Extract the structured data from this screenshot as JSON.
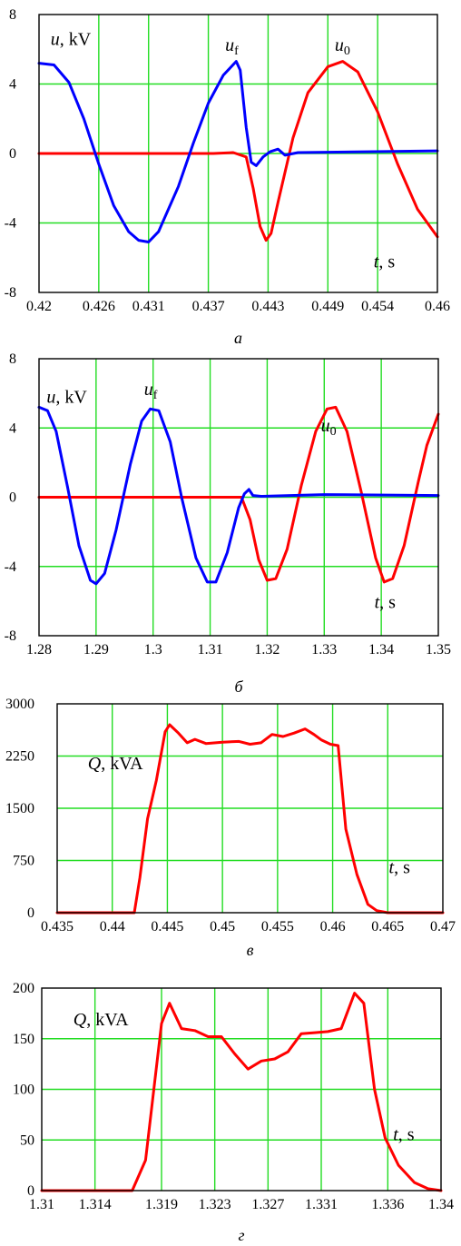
{
  "chart_data": [
    {
      "type": "line",
      "caption": "а",
      "y_label": {
        "sym": "u",
        "unit": ", kV"
      },
      "x_label": {
        "sym": "t",
        "unit": ", s"
      },
      "annotations": [
        {
          "sym": "u",
          "sub": "f",
          "x": 0.4396,
          "y": 5.9
        },
        {
          "sym": "u",
          "sub": "0",
          "x": 0.4506,
          "y": 5.9
        }
      ],
      "xlim": [
        0.42,
        0.46
      ],
      "ylim": [
        -8,
        8
      ],
      "x_ticks": [
        0.42,
        0.426,
        0.431,
        0.437,
        0.443,
        0.449,
        0.454,
        0.46
      ],
      "x_tick_labels": [
        "0.42",
        "0.426",
        "0.431",
        "0.437",
        "0.443",
        "0.449",
        "0.454",
        "0.46"
      ],
      "y_ticks": [
        -8,
        -4,
        0,
        4,
        8
      ],
      "y_tick_labels": [
        "-8",
        "-4",
        "0",
        "4",
        "8"
      ],
      "grid": true,
      "series": [
        {
          "color": "#ff0000",
          "points": [
            [
              0.42,
              0
            ],
            [
              0.4375,
              0
            ],
            [
              0.4395,
              0.05
            ],
            [
              0.4408,
              -0.2
            ],
            [
              0.4415,
              -2.0
            ],
            [
              0.4422,
              -4.2
            ],
            [
              0.4428,
              -5.0
            ],
            [
              0.4433,
              -4.6
            ],
            [
              0.444,
              -2.8
            ],
            [
              0.4455,
              0.9
            ],
            [
              0.447,
              3.5
            ],
            [
              0.449,
              5.0
            ],
            [
              0.4505,
              5.3
            ],
            [
              0.452,
              4.7
            ],
            [
              0.454,
              2.4
            ],
            [
              0.456,
              -0.6
            ],
            [
              0.458,
              -3.2
            ],
            [
              0.46,
              -4.8
            ]
          ]
        },
        {
          "color": "#0000ff",
          "points": [
            [
              0.42,
              5.2
            ],
            [
              0.4215,
              5.1
            ],
            [
              0.423,
              4.1
            ],
            [
              0.4245,
              2.0
            ],
            [
              0.426,
              -0.6
            ],
            [
              0.4275,
              -3.0
            ],
            [
              0.429,
              -4.5
            ],
            [
              0.43,
              -5.0
            ],
            [
              0.431,
              -5.1
            ],
            [
              0.432,
              -4.5
            ],
            [
              0.434,
              -1.9
            ],
            [
              0.4355,
              0.6
            ],
            [
              0.437,
              2.9
            ],
            [
              0.4385,
              4.5
            ],
            [
              0.4398,
              5.3
            ],
            [
              0.4402,
              4.8
            ],
            [
              0.4408,
              1.5
            ],
            [
              0.4413,
              -0.5
            ],
            [
              0.4418,
              -0.7
            ],
            [
              0.4425,
              -0.2
            ],
            [
              0.4432,
              0.1
            ],
            [
              0.444,
              0.25
            ],
            [
              0.4447,
              -0.1
            ],
            [
              0.446,
              0.05
            ],
            [
              0.46,
              0.15
            ]
          ]
        }
      ]
    },
    {
      "type": "line",
      "caption": "б",
      "y_label": {
        "sym": "u",
        "unit": ", kV"
      },
      "x_label": {
        "sym": "t",
        "unit": ", s"
      },
      "annotations": [
        {
          "sym": "u",
          "sub": "f",
          "x": 1.3,
          "y": 5.9
        },
        {
          "sym": "u",
          "sub": "0",
          "x": 1.331,
          "y": 3.8
        }
      ],
      "xlim": [
        1.28,
        1.35
      ],
      "ylim": [
        -8,
        8
      ],
      "x_ticks": [
        1.28,
        1.29,
        1.3,
        1.31,
        1.32,
        1.33,
        1.34,
        1.35
      ],
      "x_tick_labels": [
        "1.28",
        "1.29",
        "1.3",
        "1.31",
        "1.32",
        "1.33",
        "1.34",
        "1.35"
      ],
      "y_ticks": [
        -8,
        -4,
        0,
        4,
        8
      ],
      "y_tick_labels": [
        "-8",
        "-4",
        "0",
        "4",
        "8"
      ],
      "grid": true,
      "series": [
        {
          "color": "#ff0000",
          "points": [
            [
              1.28,
              0
            ],
            [
              1.3155,
              0
            ],
            [
              1.317,
              -1.3
            ],
            [
              1.3185,
              -3.6
            ],
            [
              1.32,
              -4.8
            ],
            [
              1.3215,
              -4.7
            ],
            [
              1.3235,
              -3.0
            ],
            [
              1.326,
              0.7
            ],
            [
              1.3285,
              3.8
            ],
            [
              1.3305,
              5.1
            ],
            [
              1.332,
              5.2
            ],
            [
              1.334,
              3.8
            ],
            [
              1.3365,
              0.3
            ],
            [
              1.339,
              -3.5
            ],
            [
              1.3405,
              -4.9
            ],
            [
              1.342,
              -4.7
            ],
            [
              1.344,
              -2.8
            ],
            [
              1.3465,
              0.9
            ],
            [
              1.348,
              3.0
            ],
            [
              1.35,
              4.8
            ]
          ]
        },
        {
          "color": "#0000ff",
          "points": [
            [
              1.28,
              5.2
            ],
            [
              1.2815,
              5.0
            ],
            [
              1.283,
              3.8
            ],
            [
              1.285,
              0.6
            ],
            [
              1.287,
              -2.8
            ],
            [
              1.289,
              -4.8
            ],
            [
              1.29,
              -5.0
            ],
            [
              1.2915,
              -4.4
            ],
            [
              1.2935,
              -1.9
            ],
            [
              1.296,
              1.9
            ],
            [
              1.298,
              4.4
            ],
            [
              1.2995,
              5.1
            ],
            [
              1.301,
              5.0
            ],
            [
              1.303,
              3.2
            ],
            [
              1.305,
              0.0
            ],
            [
              1.3075,
              -3.5
            ],
            [
              1.3095,
              -4.9
            ],
            [
              1.311,
              -4.9
            ],
            [
              1.313,
              -3.2
            ],
            [
              1.315,
              -0.6
            ],
            [
              1.316,
              0.2
            ],
            [
              1.3168,
              0.45
            ],
            [
              1.3175,
              0.1
            ],
            [
              1.319,
              0.05
            ],
            [
              1.33,
              0.15
            ],
            [
              1.35,
              0.1
            ]
          ]
        }
      ]
    },
    {
      "type": "line",
      "caption": "в",
      "y_label": {
        "sym": "Q",
        "unit": ", kVA"
      },
      "x_label": {
        "sym": "t",
        "unit": ", s"
      },
      "annotations": [],
      "xlim": [
        0.435,
        0.47
      ],
      "ylim": [
        0,
        3000
      ],
      "x_ticks": [
        0.435,
        0.44,
        0.445,
        0.45,
        0.455,
        0.46,
        0.465,
        0.47
      ],
      "x_tick_labels": [
        "0.435",
        "0.44",
        "0.445",
        "0.45",
        "0.455",
        "0.46",
        "0.465",
        "0.47"
      ],
      "y_ticks": [
        0,
        750,
        1500,
        2250,
        3000
      ],
      "y_tick_labels": [
        "0",
        "750",
        "1500",
        "2250",
        "3000"
      ],
      "grid": true,
      "series": [
        {
          "color": "#ff0000",
          "points": [
            [
              0.435,
              0
            ],
            [
              0.442,
              0
            ],
            [
              0.4425,
              500
            ],
            [
              0.4432,
              1350
            ],
            [
              0.444,
              1900
            ],
            [
              0.4448,
              2600
            ],
            [
              0.4452,
              2700
            ],
            [
              0.446,
              2580
            ],
            [
              0.4468,
              2440
            ],
            [
              0.4475,
              2490
            ],
            [
              0.4485,
              2430
            ],
            [
              0.45,
              2450
            ],
            [
              0.4515,
              2460
            ],
            [
              0.4525,
              2420
            ],
            [
              0.4535,
              2440
            ],
            [
              0.4545,
              2560
            ],
            [
              0.4555,
              2530
            ],
            [
              0.4565,
              2580
            ],
            [
              0.4575,
              2640
            ],
            [
              0.4583,
              2560
            ],
            [
              0.459,
              2480
            ],
            [
              0.4598,
              2420
            ],
            [
              0.4605,
              2400
            ],
            [
              0.4612,
              1200
            ],
            [
              0.4622,
              550
            ],
            [
              0.4632,
              120
            ],
            [
              0.464,
              30
            ],
            [
              0.465,
              0
            ],
            [
              0.47,
              0
            ]
          ]
        }
      ]
    },
    {
      "type": "line",
      "caption": "г",
      "y_label": {
        "sym": "Q",
        "unit": ", kVA"
      },
      "x_label": {
        "sym": "t",
        "unit": ", s"
      },
      "annotations": [],
      "xlim": [
        1.31,
        1.34
      ],
      "ylim": [
        0,
        200
      ],
      "x_ticks": [
        1.31,
        1.314,
        1.319,
        1.323,
        1.327,
        1.331,
        1.336,
        1.34
      ],
      "x_tick_labels": [
        "1.31",
        "1.314",
        "1.319",
        "1.323",
        "1.327",
        "1.331",
        "1.336",
        "1.34"
      ],
      "y_ticks": [
        0,
        50,
        100,
        150,
        200
      ],
      "y_tick_labels": [
        "0",
        "50",
        "100",
        "150",
        "200"
      ],
      "grid": true,
      "series": [
        {
          "color": "#ff0000",
          "points": [
            [
              1.31,
              0
            ],
            [
              1.3168,
              0
            ],
            [
              1.3178,
              30
            ],
            [
              1.319,
              165
            ],
            [
              1.3196,
              185
            ],
            [
              1.3205,
              160
            ],
            [
              1.3215,
              158
            ],
            [
              1.3225,
              152
            ],
            [
              1.3235,
              152
            ],
            [
              1.3245,
              135
            ],
            [
              1.3255,
              120
            ],
            [
              1.3265,
              128
            ],
            [
              1.3275,
              130
            ],
            [
              1.3285,
              137
            ],
            [
              1.3295,
              155
            ],
            [
              1.3305,
              156
            ],
            [
              1.3315,
              157
            ],
            [
              1.3325,
              160
            ],
            [
              1.3335,
              195
            ],
            [
              1.3342,
              185
            ],
            [
              1.335,
              100
            ],
            [
              1.3358,
              52
            ],
            [
              1.3368,
              25
            ],
            [
              1.338,
              8
            ],
            [
              1.339,
              2
            ],
            [
              1.34,
              0
            ]
          ]
        }
      ]
    }
  ]
}
